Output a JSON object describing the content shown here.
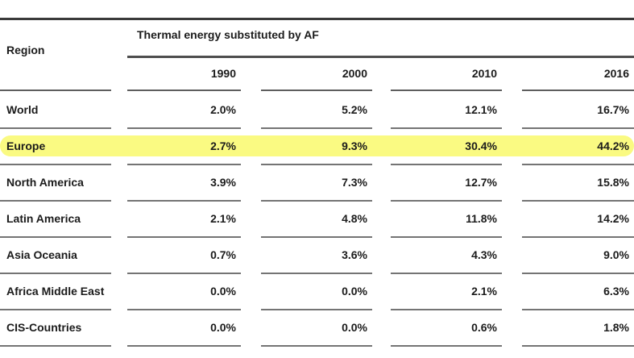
{
  "table": {
    "region_header": "Region",
    "group_header": "Thermal energy substituted by AF",
    "year_headers": [
      "1990",
      "2000",
      "2010",
      "2016"
    ],
    "rows": [
      {
        "region": "World",
        "highlighted": false,
        "values": [
          "2.0%",
          "5.2%",
          "12.1%",
          "16.7%"
        ]
      },
      {
        "region": "Europe",
        "highlighted": true,
        "values": [
          "2.7%",
          "9.3%",
          "30.4%",
          "44.2%"
        ]
      },
      {
        "region": "North America",
        "highlighted": false,
        "values": [
          "3.9%",
          "7.3%",
          "12.7%",
          "15.8%"
        ]
      },
      {
        "region": "Latin America",
        "highlighted": false,
        "values": [
          "2.1%",
          "4.8%",
          "11.8%",
          "14.2%"
        ]
      },
      {
        "region": "Asia Oceania",
        "highlighted": false,
        "values": [
          "0.7%",
          "3.6%",
          "4.3%",
          "9.0%"
        ]
      },
      {
        "region": "Africa Middle East",
        "highlighted": false,
        "values": [
          "0.0%",
          "0.0%",
          "2.1%",
          "6.3%"
        ]
      },
      {
        "region": "CIS-Countries",
        "highlighted": false,
        "values": [
          "0.0%",
          "0.0%",
          "0.6%",
          "1.8%"
        ]
      }
    ],
    "colors": {
      "highlight": "#fafa82",
      "top_rule": "#3a3a3a",
      "group_underline": "#4e4e4e",
      "header_rule": "#5e5e5e",
      "row_rule": "#747474",
      "text": "#1b1b1b"
    }
  }
}
